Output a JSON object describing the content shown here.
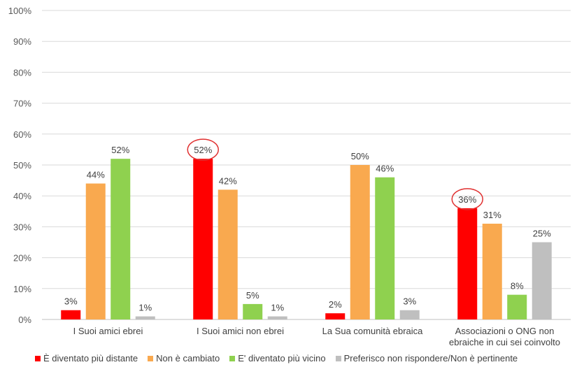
{
  "chart_data": {
    "type": "bar",
    "categories": [
      [
        "I Suoi amici ebrei"
      ],
      [
        "I Suoi amici non ebrei"
      ],
      [
        "La Sua comunità ebraica"
      ],
      [
        "Associazioni o ONG non",
        "ebraiche in cui sei coinvolto"
      ]
    ],
    "series": [
      {
        "name": "È diventato più distante",
        "color": "#ff0000",
        "values": [
          3,
          52,
          2,
          36
        ],
        "labels": [
          "3%",
          "52%",
          "2%",
          "36%"
        ]
      },
      {
        "name": "Non è cambiato",
        "color": "#f9a94f",
        "values": [
          44,
          42,
          50,
          31
        ],
        "labels": [
          "44%",
          "42%",
          "50%",
          "31%"
        ]
      },
      {
        "name": "E' diventato più vicino",
        "color": "#8fd14f",
        "values": [
          52,
          5,
          46,
          8
        ],
        "labels": [
          "52%",
          "5%",
          "46%",
          "8%"
        ]
      },
      {
        "name": "Preferisco non rispondere/Non è pertinente",
        "color": "#bfbfbf",
        "values": [
          1,
          1,
          3,
          25
        ],
        "labels": [
          "1%",
          "1%",
          "3%",
          "25%"
        ]
      }
    ],
    "ylim": [
      0,
      100
    ],
    "yticks": [
      0,
      10,
      20,
      30,
      40,
      50,
      60,
      70,
      80,
      90,
      100
    ],
    "ytick_labels": [
      "0%",
      "10%",
      "20%",
      "30%",
      "40%",
      "50%",
      "60%",
      "70%",
      "80%",
      "90%",
      "100%"
    ],
    "grid": true,
    "legend_position": "bottom",
    "highlighted": [
      {
        "series": 0,
        "category": 1
      },
      {
        "series": 0,
        "category": 3
      }
    ],
    "highlight_color": "#e03030",
    "gridline_color": "#d9d9d9"
  }
}
